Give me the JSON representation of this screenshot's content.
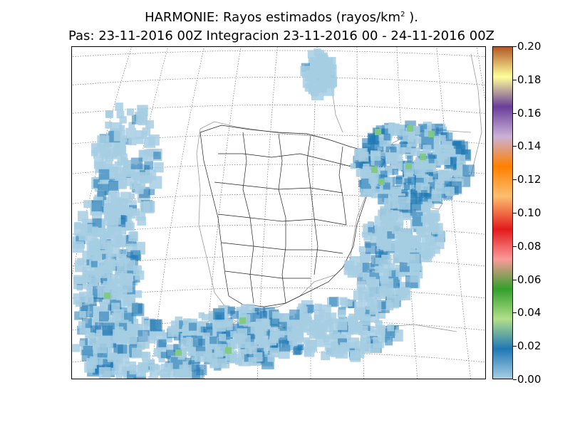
{
  "title": {
    "line1_prefix": "HARMONIE: Rayos estimados  (rayos/km",
    "line1_sup": "2",
    "line1_suffix": " ).",
    "line2": "Pas: 23-11-2016 00Z Integracion 23-11-2016 00 - 24-11-2016 00Z"
  },
  "colorbar": {
    "min": 0.0,
    "max": 0.2,
    "ticks": [
      "0.00",
      "0.02",
      "0.04",
      "0.06",
      "0.08",
      "0.10",
      "0.12",
      "0.14",
      "0.16",
      "0.18",
      "0.20"
    ],
    "colors": [
      "#a6cee3",
      "#1f78b4",
      "#b2df8a",
      "#33a02c",
      "#fb9a99",
      "#e31a1c",
      "#fdbf6f",
      "#ff7f00",
      "#cab2d6",
      "#6a3d9a",
      "#ffff99",
      "#b15928"
    ]
  },
  "map": {
    "grid_style": "dotted",
    "base_color": "#a6cee3",
    "hot_color": "#1f78b4",
    "peak_color": "#7fc97f"
  }
}
